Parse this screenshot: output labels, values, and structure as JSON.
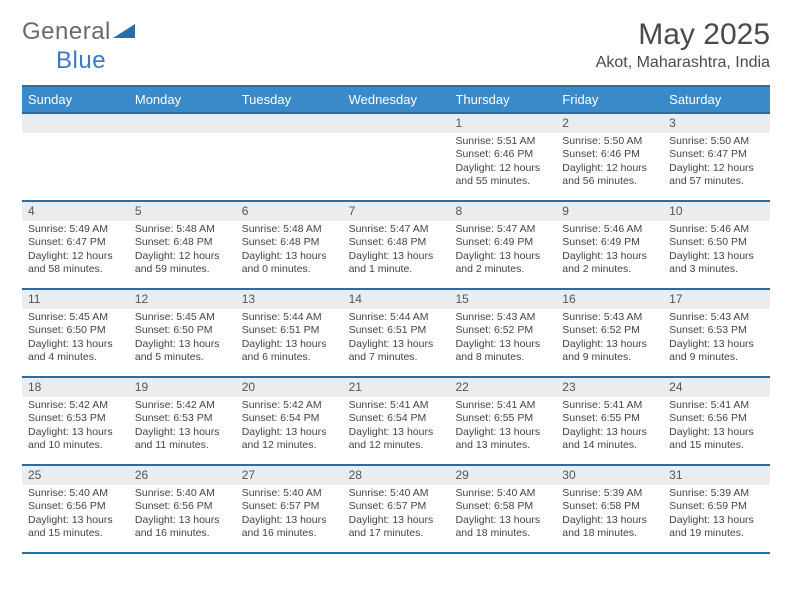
{
  "brand": {
    "part1": "General",
    "part2": "Blue"
  },
  "title": "May 2025",
  "location": "Akot, Maharashtra, India",
  "colors": {
    "header_bg": "#3a8ac9",
    "border": "#2b6ca3",
    "daynum_bg": "#ececec",
    "text": "#444444",
    "brand_gray": "#6a6a6a",
    "brand_blue": "#3a7bbf"
  },
  "day_labels": [
    "Sunday",
    "Monday",
    "Tuesday",
    "Wednesday",
    "Thursday",
    "Friday",
    "Saturday"
  ],
  "weeks": [
    [
      {
        "empty": true
      },
      {
        "empty": true
      },
      {
        "empty": true
      },
      {
        "empty": true
      },
      {
        "n": "1",
        "sr": "5:51 AM",
        "ss": "6:46 PM",
        "dl": "12 hours and 55 minutes."
      },
      {
        "n": "2",
        "sr": "5:50 AM",
        "ss": "6:46 PM",
        "dl": "12 hours and 56 minutes."
      },
      {
        "n": "3",
        "sr": "5:50 AM",
        "ss": "6:47 PM",
        "dl": "12 hours and 57 minutes."
      }
    ],
    [
      {
        "n": "4",
        "sr": "5:49 AM",
        "ss": "6:47 PM",
        "dl": "12 hours and 58 minutes."
      },
      {
        "n": "5",
        "sr": "5:48 AM",
        "ss": "6:48 PM",
        "dl": "12 hours and 59 minutes."
      },
      {
        "n": "6",
        "sr": "5:48 AM",
        "ss": "6:48 PM",
        "dl": "13 hours and 0 minutes."
      },
      {
        "n": "7",
        "sr": "5:47 AM",
        "ss": "6:48 PM",
        "dl": "13 hours and 1 minute."
      },
      {
        "n": "8",
        "sr": "5:47 AM",
        "ss": "6:49 PM",
        "dl": "13 hours and 2 minutes."
      },
      {
        "n": "9",
        "sr": "5:46 AM",
        "ss": "6:49 PM",
        "dl": "13 hours and 2 minutes."
      },
      {
        "n": "10",
        "sr": "5:46 AM",
        "ss": "6:50 PM",
        "dl": "13 hours and 3 minutes."
      }
    ],
    [
      {
        "n": "11",
        "sr": "5:45 AM",
        "ss": "6:50 PM",
        "dl": "13 hours and 4 minutes."
      },
      {
        "n": "12",
        "sr": "5:45 AM",
        "ss": "6:50 PM",
        "dl": "13 hours and 5 minutes."
      },
      {
        "n": "13",
        "sr": "5:44 AM",
        "ss": "6:51 PM",
        "dl": "13 hours and 6 minutes."
      },
      {
        "n": "14",
        "sr": "5:44 AM",
        "ss": "6:51 PM",
        "dl": "13 hours and 7 minutes."
      },
      {
        "n": "15",
        "sr": "5:43 AM",
        "ss": "6:52 PM",
        "dl": "13 hours and 8 minutes."
      },
      {
        "n": "16",
        "sr": "5:43 AM",
        "ss": "6:52 PM",
        "dl": "13 hours and 9 minutes."
      },
      {
        "n": "17",
        "sr": "5:43 AM",
        "ss": "6:53 PM",
        "dl": "13 hours and 9 minutes."
      }
    ],
    [
      {
        "n": "18",
        "sr": "5:42 AM",
        "ss": "6:53 PM",
        "dl": "13 hours and 10 minutes."
      },
      {
        "n": "19",
        "sr": "5:42 AM",
        "ss": "6:53 PM",
        "dl": "13 hours and 11 minutes."
      },
      {
        "n": "20",
        "sr": "5:42 AM",
        "ss": "6:54 PM",
        "dl": "13 hours and 12 minutes."
      },
      {
        "n": "21",
        "sr": "5:41 AM",
        "ss": "6:54 PM",
        "dl": "13 hours and 12 minutes."
      },
      {
        "n": "22",
        "sr": "5:41 AM",
        "ss": "6:55 PM",
        "dl": "13 hours and 13 minutes."
      },
      {
        "n": "23",
        "sr": "5:41 AM",
        "ss": "6:55 PM",
        "dl": "13 hours and 14 minutes."
      },
      {
        "n": "24",
        "sr": "5:41 AM",
        "ss": "6:56 PM",
        "dl": "13 hours and 15 minutes."
      }
    ],
    [
      {
        "n": "25",
        "sr": "5:40 AM",
        "ss": "6:56 PM",
        "dl": "13 hours and 15 minutes."
      },
      {
        "n": "26",
        "sr": "5:40 AM",
        "ss": "6:56 PM",
        "dl": "13 hours and 16 minutes."
      },
      {
        "n": "27",
        "sr": "5:40 AM",
        "ss": "6:57 PM",
        "dl": "13 hours and 16 minutes."
      },
      {
        "n": "28",
        "sr": "5:40 AM",
        "ss": "6:57 PM",
        "dl": "13 hours and 17 minutes."
      },
      {
        "n": "29",
        "sr": "5:40 AM",
        "ss": "6:58 PM",
        "dl": "13 hours and 18 minutes."
      },
      {
        "n": "30",
        "sr": "5:39 AM",
        "ss": "6:58 PM",
        "dl": "13 hours and 18 minutes."
      },
      {
        "n": "31",
        "sr": "5:39 AM",
        "ss": "6:59 PM",
        "dl": "13 hours and 19 minutes."
      }
    ]
  ],
  "labels": {
    "sunrise": "Sunrise: ",
    "sunset": "Sunset: ",
    "daylight": "Daylight: "
  }
}
